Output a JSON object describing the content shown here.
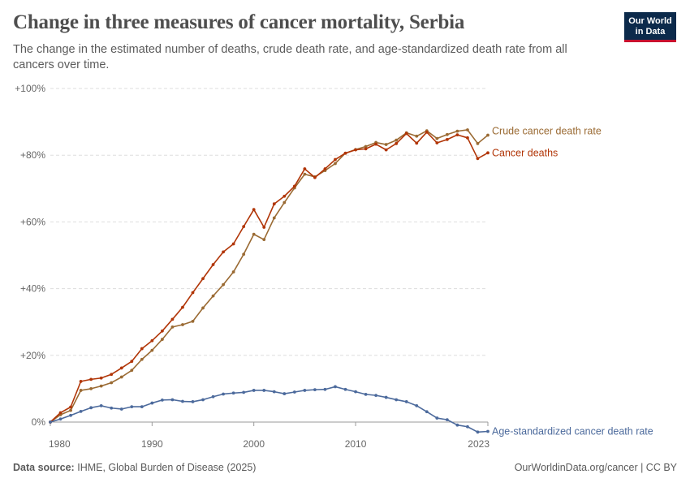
{
  "header": {
    "title": "Change in three measures of cancer mortality, Serbia",
    "subtitle": "The change in the estimated number of deaths, crude death rate, and age-standardized death rate from all cancers over time."
  },
  "logo": {
    "line1": "Our World",
    "line2": "in Data",
    "bg": "#0c2a4b",
    "accent": "#c8102e"
  },
  "footer": {
    "source_label": "Data source:",
    "source_text": "IHME, Global Burden of Disease (2025)",
    "credit": "OurWorldinData.org/cancer | CC BY"
  },
  "chart_data": {
    "type": "line",
    "title": "Change in three measures of cancer mortality, Serbia",
    "y_unit": "percent change",
    "ylim": [
      0,
      100
    ],
    "y_ticks": [
      0,
      20,
      40,
      60,
      80,
      100
    ],
    "y_tick_labels": [
      "0%",
      "+20%",
      "+40%",
      "+60%",
      "+80%",
      "+100%"
    ],
    "x_ticks": [
      1980,
      1990,
      2000,
      2010,
      2023
    ],
    "x_tick_labels": [
      "1980",
      "1990",
      "2000",
      "2010",
      "2023"
    ],
    "xlim": [
      1980,
      2023
    ],
    "grid": "horizontal dashed",
    "legend": "inline labels at line ends",
    "x": [
      1980,
      1981,
      1982,
      1983,
      1984,
      1985,
      1986,
      1987,
      1988,
      1989,
      1990,
      1991,
      1992,
      1993,
      1994,
      1995,
      1996,
      1997,
      1998,
      1999,
      2000,
      2001,
      2002,
      2003,
      2004,
      2005,
      2006,
      2007,
      2008,
      2009,
      2010,
      2011,
      2012,
      2013,
      2014,
      2015,
      2016,
      2017,
      2018,
      2019,
      2020,
      2021,
      2022,
      2023
    ],
    "series": [
      {
        "name": "Crude cancer death rate",
        "color": "#9a6a33",
        "values": [
          0,
          2.2,
          3.5,
          9.5,
          10,
          10.8,
          11.8,
          13.5,
          15.5,
          18.8,
          21.5,
          24.8,
          28.5,
          29.2,
          30.2,
          34.2,
          37.8,
          41.2,
          45,
          50.3,
          56.3,
          54.7,
          61.2,
          65.8,
          70.2,
          74.3,
          73.5,
          75.4,
          77.5,
          80.6,
          81.7,
          82.6,
          83.8,
          83.2,
          84.5,
          86.7,
          85.7,
          87.3,
          85,
          86.2,
          87.2,
          87.6,
          83.5,
          86
        ]
      },
      {
        "name": "Cancer deaths",
        "color": "#b13507",
        "values": [
          0,
          2.8,
          4.5,
          12.2,
          12.8,
          13.2,
          14.3,
          16.2,
          18.2,
          22,
          24.4,
          27.3,
          30.8,
          34.4,
          38.8,
          43,
          47.2,
          51,
          53.4,
          58.6,
          63.7,
          58.4,
          65.4,
          67.7,
          70.7,
          75.9,
          73.3,
          75.9,
          78.7,
          80.6,
          81.6,
          81.9,
          83.3,
          81.6,
          83.5,
          86.5,
          83.6,
          86.9,
          83.7,
          84.7,
          86.1,
          85.2,
          79,
          80.7
        ]
      },
      {
        "name": "Age-standardized cancer death rate",
        "color": "#4c6a9c",
        "values": [
          0,
          0.9,
          2,
          3.2,
          4.3,
          4.9,
          4.2,
          3.9,
          4.6,
          4.6,
          5.7,
          6.6,
          6.7,
          6.2,
          6.1,
          6.7,
          7.6,
          8.4,
          8.7,
          8.9,
          9.5,
          9.5,
          9.1,
          8.5,
          9,
          9.5,
          9.7,
          9.8,
          10.6,
          9.8,
          9.1,
          8.3,
          8,
          7.4,
          6.7,
          6.1,
          4.9,
          3.1,
          1.2,
          0.7,
          -0.9,
          -1.4,
          -3,
          -2.8
        ]
      }
    ]
  }
}
